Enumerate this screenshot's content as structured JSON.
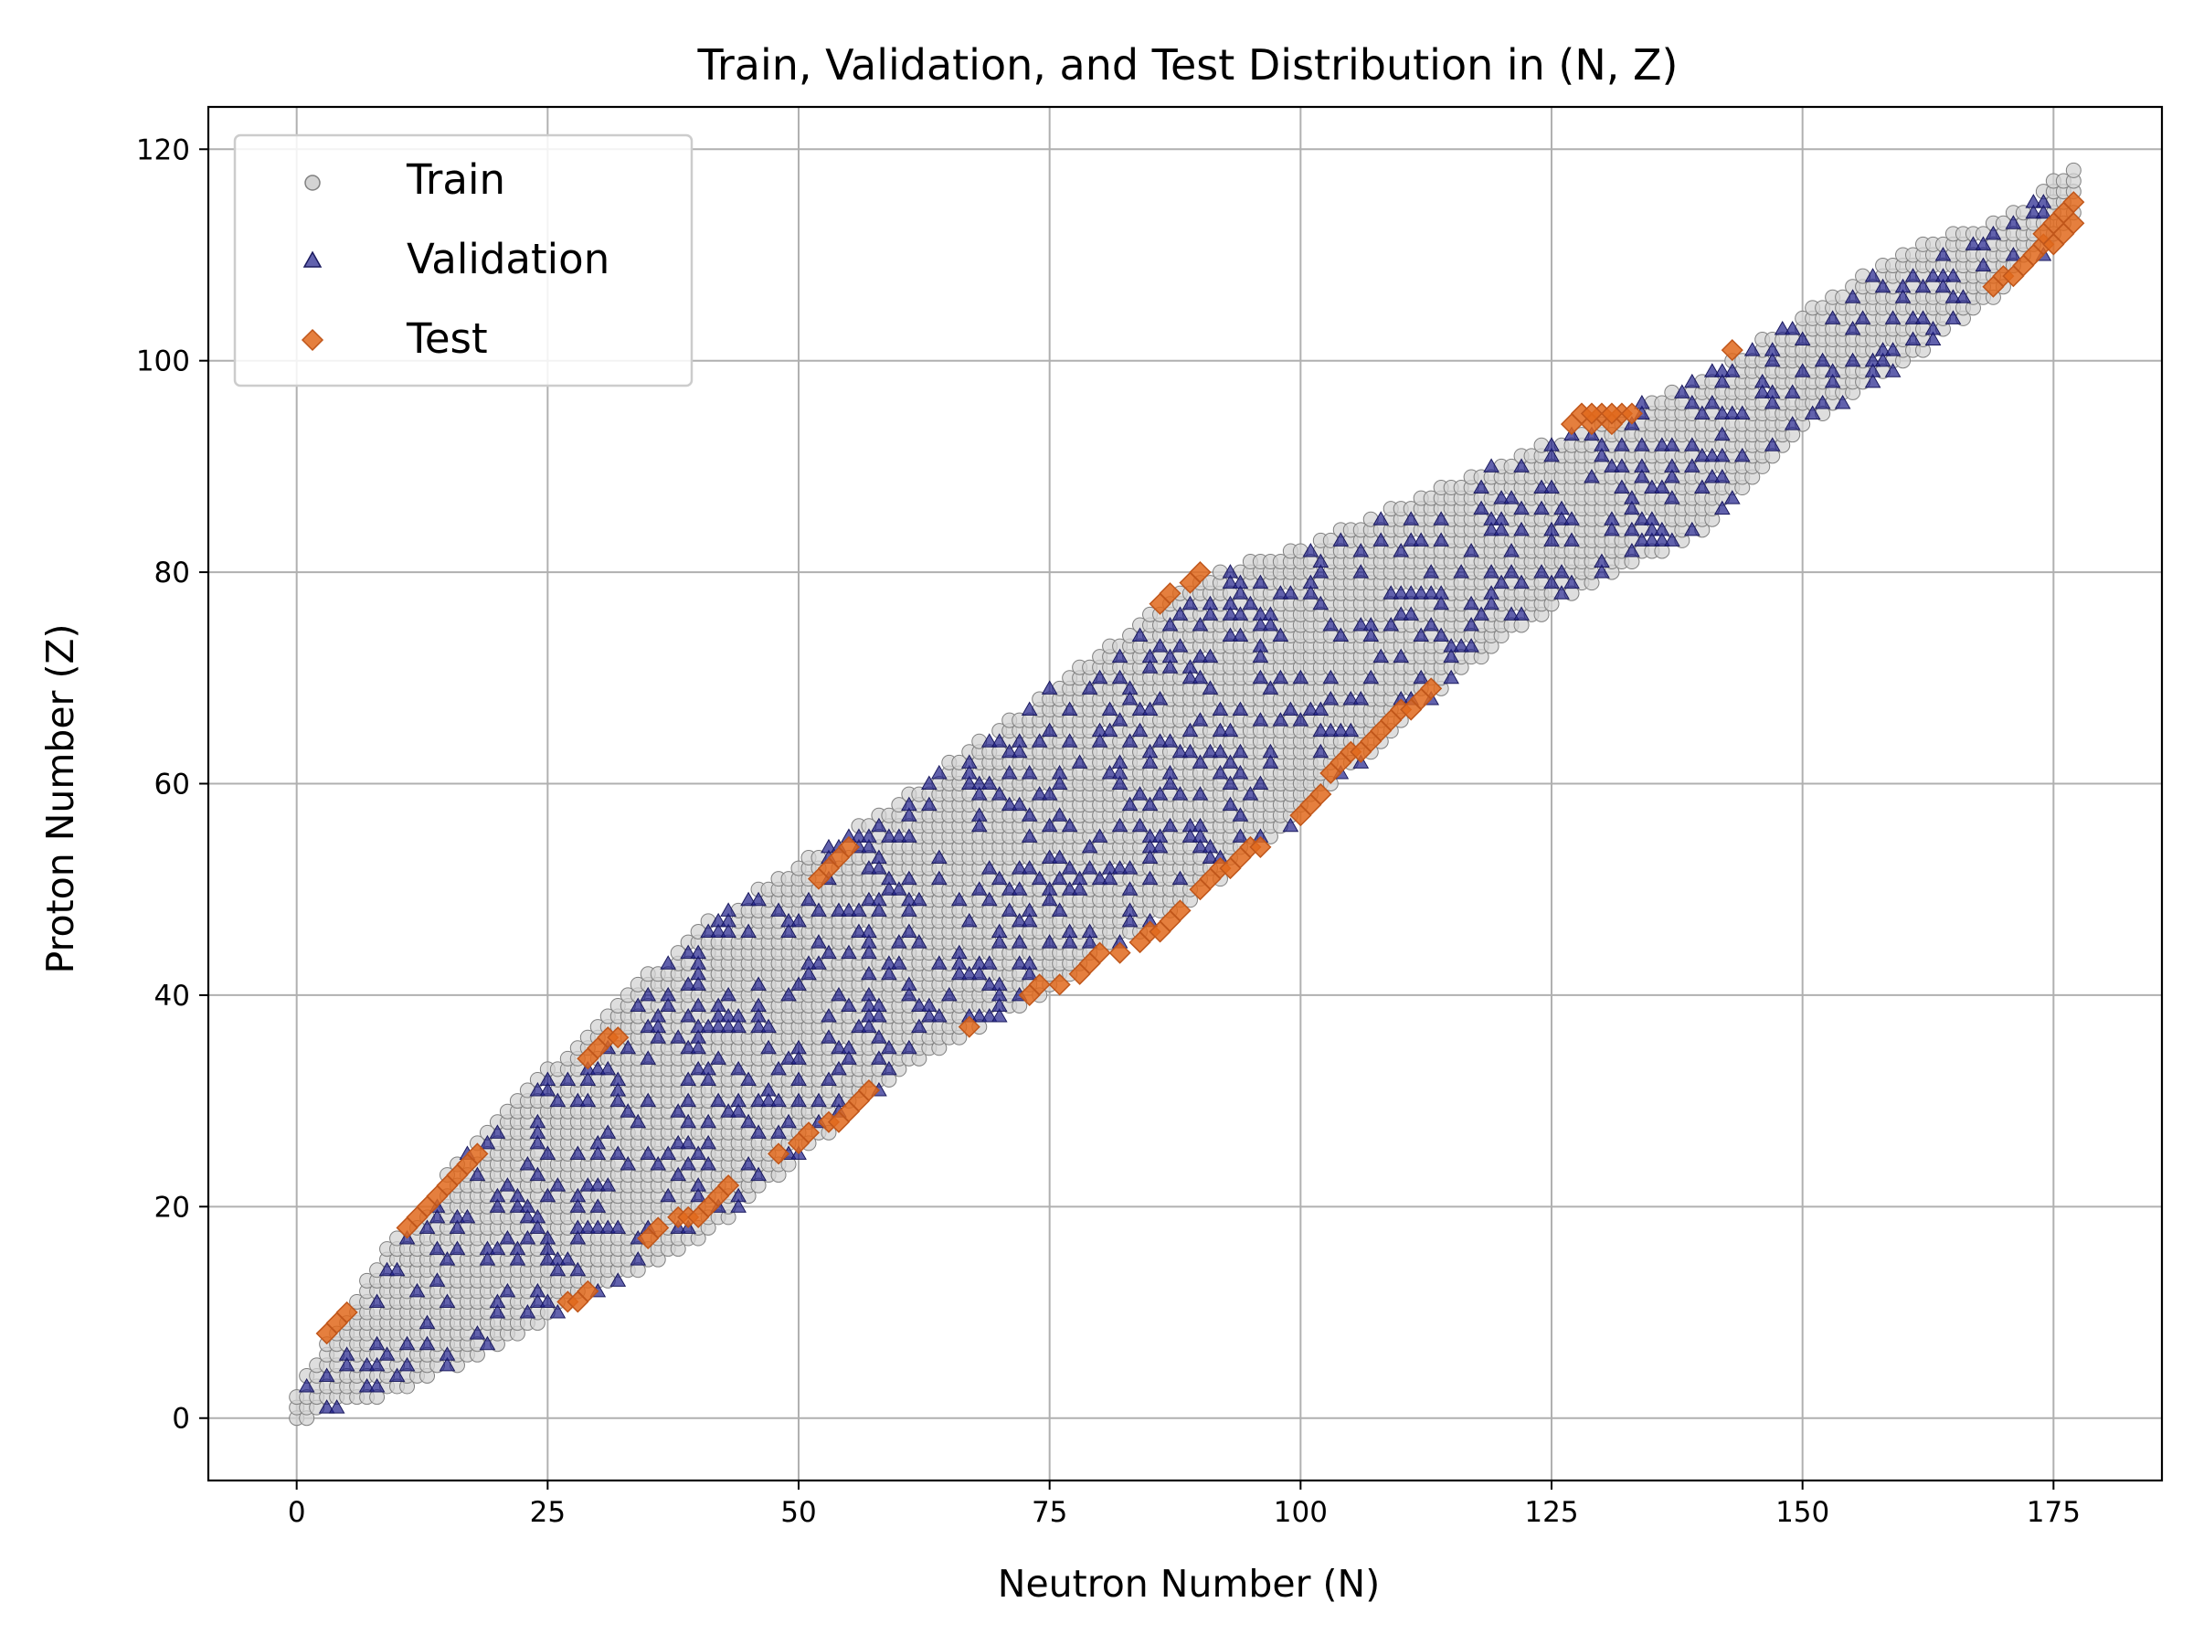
{
  "chart_data": {
    "type": "scatter",
    "title": "Train, Validation, and Test Distribution in (N, Z)",
    "xlabel": "Neutron Number (N)",
    "ylabel": "Proton Number (Z)",
    "xlim": [
      -8.8,
      185.8
    ],
    "ylim": [
      -5.9,
      124
    ],
    "xticks": [
      0,
      25,
      50,
      75,
      100,
      125,
      150,
      175
    ],
    "yticks": [
      0,
      20,
      40,
      60,
      80,
      100,
      120
    ],
    "grid": true,
    "legend_position": "top-left",
    "series": [
      {
        "name": "Train",
        "marker": "circle",
        "color": "#d3d3d3",
        "edge_color": "#808080",
        "region": {
          "description_key": "nuclide chart band",
          "n_range": [
            0,
            177
          ],
          "lower_edge": [
            [
              0,
              0
            ],
            [
              10,
              3
            ],
            [
              20,
              7
            ],
            [
              30,
              12
            ],
            [
              40,
              17
            ],
            [
              50,
              25
            ],
            [
              60,
              33
            ],
            [
              70,
              38
            ],
            [
              80,
              44
            ],
            [
              90,
              50
            ],
            [
              100,
              57
            ],
            [
              110,
              66
            ],
            [
              120,
              74
            ],
            [
              130,
              80
            ],
            [
              140,
              84
            ],
            [
              150,
              94
            ],
            [
              160,
              100
            ],
            [
              170,
              107
            ],
            [
              177,
              113
            ]
          ],
          "upper_edge": [
            [
              0,
              2
            ],
            [
              3,
              7
            ],
            [
              10,
              17
            ],
            [
              20,
              28
            ],
            [
              30,
              37
            ],
            [
              40,
              46
            ],
            [
              50,
              52
            ],
            [
              60,
              58
            ],
            [
              70,
              65
            ],
            [
              80,
              72
            ],
            [
              90,
              79
            ],
            [
              100,
              82
            ],
            [
              110,
              86
            ],
            [
              120,
              90
            ],
            [
              130,
              94
            ],
            [
              140,
              98
            ],
            [
              150,
              104
            ],
            [
              160,
              110
            ],
            [
              170,
              113
            ],
            [
              177,
              118
            ]
          ]
        }
      },
      {
        "name": "Validation",
        "marker": "triangle",
        "color": "#1f1f8a",
        "edge_color": "#1a1a5e",
        "sample_fraction": 0.22
      },
      {
        "name": "Test",
        "marker": "diamond",
        "color": "#e0681c",
        "edge_color": "#c0561a",
        "points": [
          [
            3,
            8
          ],
          [
            4,
            9
          ],
          [
            5,
            10
          ],
          [
            11,
            18
          ],
          [
            12,
            19
          ],
          [
            13,
            20
          ],
          [
            14,
            21
          ],
          [
            15,
            22
          ],
          [
            16,
            23
          ],
          [
            17,
            24
          ],
          [
            18,
            25
          ],
          [
            27,
            11
          ],
          [
            28,
            11
          ],
          [
            29,
            12
          ],
          [
            29,
            34
          ],
          [
            30,
            35
          ],
          [
            31,
            36
          ],
          [
            32,
            36
          ],
          [
            35,
            17
          ],
          [
            36,
            18
          ],
          [
            38,
            19
          ],
          [
            39,
            19
          ],
          [
            40,
            19
          ],
          [
            41,
            20
          ],
          [
            42,
            21
          ],
          [
            43,
            22
          ],
          [
            48,
            25
          ],
          [
            50,
            26
          ],
          [
            51,
            27
          ],
          [
            52,
            51
          ],
          [
            53,
            52
          ],
          [
            54,
            53
          ],
          [
            55,
            54
          ],
          [
            53,
            28
          ],
          [
            54,
            28
          ],
          [
            55,
            29
          ],
          [
            56,
            30
          ],
          [
            57,
            31
          ],
          [
            67,
            37
          ],
          [
            73,
            40
          ],
          [
            74,
            41
          ],
          [
            76,
            41
          ],
          [
            78,
            42
          ],
          [
            79,
            43
          ],
          [
            80,
            44
          ],
          [
            82,
            44
          ],
          [
            84,
            45
          ],
          [
            85,
            46
          ],
          [
            86,
            46
          ],
          [
            87,
            47
          ],
          [
            88,
            48
          ],
          [
            86,
            77
          ],
          [
            87,
            78
          ],
          [
            89,
            79
          ],
          [
            90,
            80
          ],
          [
            90,
            50
          ],
          [
            91,
            51
          ],
          [
            92,
            52
          ],
          [
            93,
            52
          ],
          [
            94,
            53
          ],
          [
            95,
            54
          ],
          [
            96,
            54
          ],
          [
            100,
            57
          ],
          [
            101,
            58
          ],
          [
            102,
            59
          ],
          [
            103,
            61
          ],
          [
            104,
            62
          ],
          [
            105,
            63
          ],
          [
            106,
            63
          ],
          [
            107,
            64
          ],
          [
            108,
            65
          ],
          [
            109,
            66
          ],
          [
            110,
            67
          ],
          [
            111,
            67
          ],
          [
            112,
            68
          ],
          [
            113,
            69
          ],
          [
            127,
            94
          ],
          [
            128,
            95
          ],
          [
            129,
            94
          ],
          [
            130,
            95
          ],
          [
            131,
            94
          ],
          [
            132,
            95
          ],
          [
            133,
            95
          ],
          [
            129,
            95
          ],
          [
            131,
            95
          ],
          [
            143,
            101
          ],
          [
            169,
            107
          ],
          [
            170,
            108
          ],
          [
            171,
            108
          ],
          [
            172,
            109
          ],
          [
            173,
            110
          ],
          [
            174,
            111
          ],
          [
            175,
            111
          ],
          [
            176,
            112
          ],
          [
            177,
            113
          ],
          [
            176,
            114
          ],
          [
            177,
            115
          ],
          [
            175,
            113
          ],
          [
            174,
            112
          ]
        ]
      }
    ]
  }
}
